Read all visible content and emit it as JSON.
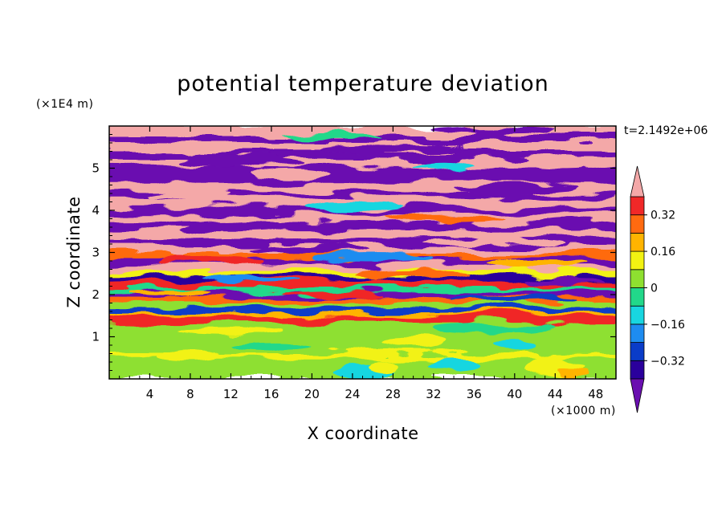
{
  "chart_data": {
    "type": "heatmap",
    "title": "potential temperature deviation",
    "xlabel": "X coordinate",
    "ylabel": "Z coordinate",
    "x_units": "(×1000 m)",
    "y_units": "(×1E4 m)",
    "time_label": "t=2.1492e+06",
    "xlim": [
      0,
      50
    ],
    "ylim": [
      0,
      6
    ],
    "x_ticks": [
      4,
      8,
      12,
      16,
      20,
      24,
      28,
      32,
      36,
      40,
      44,
      48
    ],
    "y_ticks": [
      1,
      2,
      3,
      4,
      5
    ],
    "x_tick_labels": [
      "4",
      "8",
      "12",
      "16",
      "20",
      "24",
      "28",
      "32",
      "36",
      "40",
      "44",
      "48"
    ],
    "y_tick_labels": [
      "1",
      "2",
      "3",
      "4",
      "5"
    ],
    "colorbar": {
      "levels": [
        -0.4,
        -0.32,
        -0.24,
        -0.16,
        -0.08,
        0,
        0.08,
        0.16,
        0.24,
        0.32,
        0.4
      ],
      "labeled_levels": [
        0.32,
        0.16,
        0,
        -0.16,
        -0.32
      ],
      "labels": [
        "0.32",
        "0.16",
        "0",
        "−0.16",
        "−0.32"
      ],
      "colors_low_to_high": [
        "#6a0fb0",
        "#2a009c",
        "#0a3cc8",
        "#1e8cf0",
        "#18d6e0",
        "#22d88a",
        "#8ee030",
        "#f2f212",
        "#ffb400",
        "#ff6a10",
        "#f02828",
        "#f4a8a8"
      ],
      "extend": "both"
    },
    "bands_bottom_to_top": [
      {
        "z_range": [
          0,
          1.35
        ],
        "pattern": "mostly weak positive/near-zero, green with cyan and yellow patches"
      },
      {
        "z_range": [
          1.35,
          3.0
        ],
        "pattern": "strongly alternating layers, full colour range"
      },
      {
        "z_range": [
          3.0,
          6.0
        ],
        "pattern": "alternating pink (>0.4) and purple (<-0.4) layers"
      }
    ]
  }
}
